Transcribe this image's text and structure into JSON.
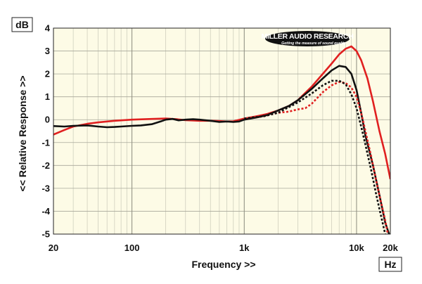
{
  "chart_data": {
    "type": "line",
    "title": "",
    "xlabel": "Frequency >>",
    "ylabel": "<< Relative Response >>",
    "x_unit": "Hz",
    "y_unit": "dB",
    "x_scale": "log",
    "xlim": [
      20,
      20000
    ],
    "ylim": [
      -5,
      4
    ],
    "grid": true,
    "x_ticks": [
      {
        "value": 20,
        "label": "20"
      },
      {
        "value": 100,
        "label": "100"
      },
      {
        "value": 1000,
        "label": "1k"
      },
      {
        "value": 10000,
        "label": "10k"
      },
      {
        "value": 20000,
        "label": "20k"
      }
    ],
    "y_ticks": [
      {
        "value": 4,
        "label": "4"
      },
      {
        "value": 3,
        "label": "3"
      },
      {
        "value": 2,
        "label": "2"
      },
      {
        "value": 1,
        "label": "1"
      },
      {
        "value": 0,
        "label": "0"
      },
      {
        "value": -1,
        "label": "-1"
      },
      {
        "value": -2,
        "label": "-2"
      },
      {
        "value": -3,
        "label": "-3"
      },
      {
        "value": -4,
        "label": "-4"
      },
      {
        "value": -5,
        "label": "-5"
      }
    ],
    "series": [
      {
        "color": "#e02020",
        "dash": "solid",
        "points": [
          [
            20,
            -0.65
          ],
          [
            25,
            -0.45
          ],
          [
            30,
            -0.3
          ],
          [
            40,
            -0.18
          ],
          [
            50,
            -0.12
          ],
          [
            70,
            -0.05
          ],
          [
            100,
            0.0
          ],
          [
            150,
            0.03
          ],
          [
            200,
            0.05
          ],
          [
            250,
            0.02
          ],
          [
            300,
            -0.02
          ],
          [
            400,
            -0.05
          ],
          [
            500,
            -0.05
          ],
          [
            600,
            -0.06
          ],
          [
            700,
            -0.08
          ],
          [
            800,
            -0.07
          ],
          [
            1000,
            0.05
          ],
          [
            1300,
            0.15
          ],
          [
            1600,
            0.25
          ],
          [
            2000,
            0.4
          ],
          [
            2500,
            0.6
          ],
          [
            3000,
            0.85
          ],
          [
            4000,
            1.45
          ],
          [
            5000,
            2.0
          ],
          [
            6000,
            2.45
          ],
          [
            7000,
            2.85
          ],
          [
            8000,
            3.1
          ],
          [
            9000,
            3.2
          ],
          [
            10000,
            3.0
          ],
          [
            11000,
            2.6
          ],
          [
            12500,
            1.8
          ],
          [
            14000,
            0.8
          ],
          [
            16000,
            -0.5
          ],
          [
            18000,
            -1.5
          ],
          [
            20000,
            -2.6
          ]
        ]
      },
      {
        "color": "#111111",
        "dash": "solid",
        "points": [
          [
            20,
            -0.28
          ],
          [
            25,
            -0.3
          ],
          [
            30,
            -0.27
          ],
          [
            40,
            -0.25
          ],
          [
            50,
            -0.3
          ],
          [
            60,
            -0.33
          ],
          [
            70,
            -0.32
          ],
          [
            80,
            -0.3
          ],
          [
            100,
            -0.27
          ],
          [
            120,
            -0.25
          ],
          [
            150,
            -0.2
          ],
          [
            180,
            -0.08
          ],
          [
            200,
            0.0
          ],
          [
            230,
            0.03
          ],
          [
            260,
            -0.03
          ],
          [
            300,
            0.0
          ],
          [
            350,
            0.02
          ],
          [
            400,
            0.0
          ],
          [
            500,
            -0.05
          ],
          [
            600,
            -0.1
          ],
          [
            700,
            -0.08
          ],
          [
            800,
            -0.1
          ],
          [
            900,
            -0.08
          ],
          [
            1000,
            0.0
          ],
          [
            1300,
            0.1
          ],
          [
            1600,
            0.2
          ],
          [
            2000,
            0.4
          ],
          [
            2500,
            0.6
          ],
          [
            3000,
            0.85
          ],
          [
            4000,
            1.35
          ],
          [
            5000,
            1.8
          ],
          [
            6000,
            2.15
          ],
          [
            7000,
            2.35
          ],
          [
            8000,
            2.3
          ],
          [
            9000,
            2.0
          ],
          [
            10000,
            1.3
          ],
          [
            11000,
            0.3
          ],
          [
            12000,
            -0.7
          ],
          [
            14000,
            -2.0
          ],
          [
            16000,
            -3.3
          ],
          [
            18000,
            -4.5
          ],
          [
            19500,
            -5.0
          ]
        ]
      },
      {
        "color": "#e02020",
        "dash": "dotted",
        "points": [
          [
            1000,
            0.05
          ],
          [
            1500,
            0.15
          ],
          [
            2000,
            0.3
          ],
          [
            2500,
            0.35
          ],
          [
            3000,
            0.45
          ],
          [
            3500,
            0.5
          ],
          [
            4000,
            0.7
          ],
          [
            5000,
            1.2
          ],
          [
            6000,
            1.5
          ],
          [
            7000,
            1.65
          ],
          [
            8000,
            1.6
          ],
          [
            9000,
            1.4
          ],
          [
            10000,
            1.0
          ],
          [
            11000,
            0.3
          ],
          [
            12000,
            -0.5
          ],
          [
            13500,
            -1.6
          ],
          [
            15000,
            -2.7
          ],
          [
            16500,
            -3.6
          ],
          [
            18000,
            -4.4
          ],
          [
            19000,
            -5.0
          ]
        ]
      },
      {
        "color": "#111111",
        "dash": "dotted",
        "points": [
          [
            1000,
            0.05
          ],
          [
            1500,
            0.15
          ],
          [
            2000,
            0.3
          ],
          [
            2500,
            0.55
          ],
          [
            3000,
            0.75
          ],
          [
            4000,
            1.15
          ],
          [
            5000,
            1.5
          ],
          [
            6000,
            1.7
          ],
          [
            7000,
            1.7
          ],
          [
            8000,
            1.55
          ],
          [
            9000,
            1.1
          ],
          [
            10000,
            0.5
          ],
          [
            11000,
            -0.3
          ],
          [
            12000,
            -1.1
          ],
          [
            13500,
            -2.2
          ],
          [
            15000,
            -3.3
          ],
          [
            16500,
            -4.2
          ],
          [
            18000,
            -5.0
          ]
        ]
      }
    ]
  },
  "logo": {
    "name": "MILLER AUDIO RESEARCH",
    "tagline": "Getting the measure of sound quality"
  }
}
